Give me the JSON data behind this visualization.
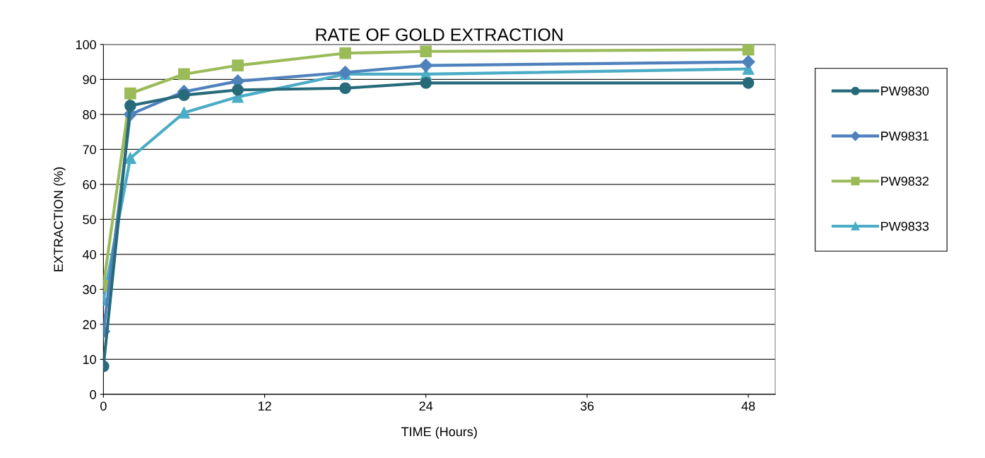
{
  "chart_data": {
    "type": "line",
    "title": "RATE OF GOLD EXTRACTION",
    "xlabel": "TIME (Hours)",
    "ylabel": "EXTRACTION (%)",
    "x": [
      0,
      2,
      6,
      10,
      18,
      24,
      48
    ],
    "series": [
      {
        "name": "PW9830",
        "color": "#276b7b",
        "marker": "circle",
        "values": [
          8,
          82.5,
          85.5,
          87,
          87.5,
          89,
          89
        ]
      },
      {
        "name": "PW9831",
        "color": "#4f81bd",
        "marker": "diamond",
        "values": [
          18,
          80,
          86.5,
          89.5,
          92,
          94,
          95
        ]
      },
      {
        "name": "PW9832",
        "color": "#9bbb59",
        "marker": "square",
        "values": [
          31,
          86,
          91.5,
          94,
          97.5,
          98,
          98.5
        ]
      },
      {
        "name": "PW9833",
        "color": "#4bacc6",
        "marker": "triangle",
        "values": [
          27,
          67.5,
          80.5,
          85,
          91.5,
          91.5,
          93
        ]
      }
    ],
    "xlim": [
      0,
      50
    ],
    "xticks": [
      0,
      12,
      24,
      36,
      48
    ],
    "ylim": [
      0,
      100
    ],
    "yticks": [
      0,
      10,
      20,
      30,
      40,
      50,
      60,
      70,
      80,
      90,
      100
    ],
    "grid": "y",
    "legend": "right",
    "line_style": "solid"
  }
}
